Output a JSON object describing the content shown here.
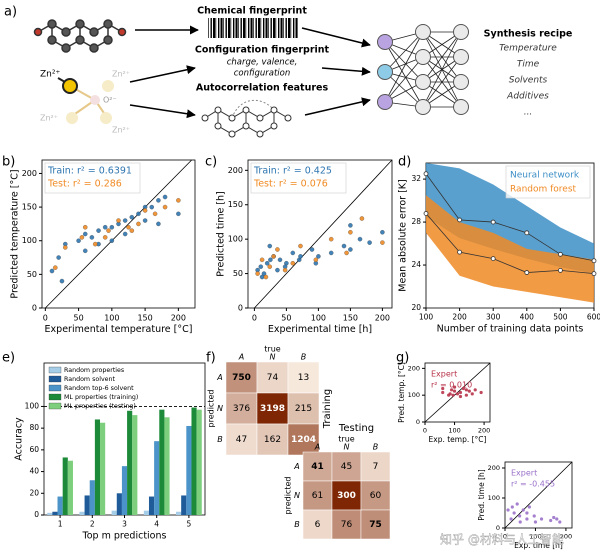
{
  "diagram": {
    "panel": "a)",
    "inputs": [
      "Chemical fingerprint",
      "Configuration fingerprint",
      "Autocorrelation features"
    ],
    "config_detail": [
      "charge, valence,",
      "configuration"
    ],
    "ions": [
      "Zn²⁺",
      "Zn²⁺",
      "Zn²⁺",
      "Zn²⁺",
      "O²⁻"
    ],
    "output_title": "Synthesis recipe",
    "outputs": [
      "Temperature",
      "Time",
      "Solvents",
      "Additives",
      "..."
    ],
    "watermark": "知乎 @材料与人工智能"
  },
  "chart_data": [
    {
      "type": "scatter",
      "panel": "b)",
      "x_label": "Experimental temperature [°C]",
      "y_label": "Predicted temperature [°C]",
      "xlim": [
        -5,
        225
      ],
      "ylim": [
        0,
        220
      ],
      "xticks": [
        0,
        50,
        100,
        150,
        200
      ],
      "yticks": [
        0,
        50,
        100,
        150,
        200
      ],
      "diagonal": true,
      "series": [
        {
          "name": "Train: r² = 0.6391",
          "color": "#2e75b0",
          "x": [
            10,
            20,
            25,
            30,
            50,
            60,
            70,
            80,
            90,
            100,
            110,
            120,
            130,
            140,
            150,
            160,
            170,
            180,
            200,
            100,
            120,
            150,
            80,
            60,
            170
          ],
          "y": [
            55,
            75,
            40,
            95,
            100,
            110,
            105,
            115,
            120,
            120,
            125,
            130,
            135,
            140,
            150,
            150,
            160,
            165,
            140,
            100,
            110,
            130,
            95,
            85,
            125
          ]
        },
        {
          "name": "Test: r² = 0.286",
          "color": "#f08a24",
          "x": [
            15,
            30,
            55,
            75,
            95,
            110,
            125,
            140,
            150,
            165,
            180,
            200,
            90,
            130,
            60
          ],
          "y": [
            60,
            90,
            105,
            95,
            115,
            130,
            120,
            125,
            145,
            140,
            150,
            160,
            105,
            115,
            120
          ]
        }
      ]
    },
    {
      "type": "scatter",
      "panel": "c)",
      "x_label": "Experimental time [h]",
      "y_label": "Predicted time [h]",
      "xlim": [
        -10,
        215
      ],
      "ylim": [
        0,
        215
      ],
      "xticks": [
        0,
        50,
        100,
        150,
        200
      ],
      "yticks": [
        0,
        50,
        100,
        150,
        200
      ],
      "diagonal": true,
      "series": [
        {
          "name": "Train: r² = 0.425",
          "color": "#2e75b0",
          "x": [
            5,
            10,
            15,
            20,
            25,
            30,
            40,
            50,
            60,
            70,
            72,
            90,
            100,
            120,
            140,
            150,
            165,
            180,
            200,
            48,
            24,
            12,
            36,
            96,
            150
          ],
          "y": [
            55,
            60,
            50,
            65,
            70,
            75,
            70,
            65,
            80,
            70,
            75,
            85,
            75,
            80,
            90,
            120,
            100,
            95,
            110,
            60,
            90,
            45,
            55,
            65,
            85
          ]
        },
        {
          "name": "Test: r² = 0.076",
          "color": "#f08a24",
          "x": [
            5,
            12,
            24,
            36,
            48,
            72,
            96,
            120,
            144,
            168,
            200,
            60,
            30,
            150,
            18
          ],
          "y": [
            50,
            70,
            60,
            85,
            55,
            90,
            70,
            100,
            80,
            130,
            95,
            65,
            75,
            110,
            45
          ]
        }
      ]
    },
    {
      "type": "line",
      "panel": "d)",
      "x_label": "Number of training data points",
      "y_label": "Mean absolute error [K]",
      "x": [
        100,
        200,
        300,
        400,
        500,
        600
      ],
      "xlim": [
        100,
        600
      ],
      "ylim": [
        20,
        33.5
      ],
      "xticks": [
        100,
        200,
        300,
        400,
        500,
        600
      ],
      "yticks": [
        20,
        24,
        28,
        32
      ],
      "legend": "upper right",
      "series": [
        {
          "name": "Neural network",
          "color": "#3d8fc6",
          "values": [
            32.5,
            28.2,
            28.0,
            27.0,
            25.0,
            24.4
          ],
          "lower": [
            28.5,
            26.5,
            25.5,
            24.6,
            23.8,
            23.2
          ],
          "upper": [
            33.5,
            33.0,
            31.5,
            29.5,
            27.5,
            26.0
          ]
        },
        {
          "name": "Random forest",
          "color": "#f08a24",
          "values": [
            28.8,
            25.2,
            24.6,
            23.3,
            23.5,
            23.2
          ],
          "lower": [
            27.0,
            23.0,
            22.0,
            21.5,
            21.0,
            20.5
          ],
          "upper": [
            30.5,
            28.0,
            27.0,
            25.5,
            25.0,
            24.5
          ]
        }
      ]
    },
    {
      "type": "bar",
      "panel": "e)",
      "x_label": "Top m predictions",
      "y_label": "Accuracy",
      "categories": [
        "1",
        "2",
        "3",
        "4",
        "5"
      ],
      "ylim": [
        0,
        140
      ],
      "yticks": [
        0,
        20,
        40,
        60,
        80,
        100
      ],
      "hline": 100,
      "series": [
        {
          "name": "Random properties",
          "color": "#a6cde8",
          "values": [
            2,
            3,
            4,
            4,
            3
          ]
        },
        {
          "name": "Random solvent",
          "color": "#1f5b99",
          "values": [
            3,
            18,
            20,
            17,
            18
          ]
        },
        {
          "name": "Random top-6 solvent",
          "color": "#4b93c8",
          "values": [
            17,
            32,
            45,
            68,
            82
          ]
        },
        {
          "name": "ML properties (training)",
          "color": "#1d8a3a",
          "values": [
            53,
            88,
            96,
            97,
            99
          ]
        },
        {
          "name": "ML properties (testing)",
          "color": "#7dcf7d",
          "values": [
            50,
            85,
            92,
            90,
            97
          ]
        }
      ]
    },
    {
      "type": "heatmap",
      "panel": "f)",
      "x_label": "true",
      "y_label": "predicted",
      "categories": [
        "A",
        "N",
        "B"
      ],
      "matrices": [
        {
          "title": "Training",
          "values": [
            [
              750,
              74,
              13
            ],
            [
              376,
              3198,
              215
            ],
            [
              47,
              162,
              1204
            ]
          ]
        },
        {
          "title": "Testing",
          "values": [
            [
              41,
              45,
              7
            ],
            [
              61,
              300,
              60
            ],
            [
              6,
              76,
              75
            ]
          ]
        }
      ]
    },
    {
      "type": "scatter",
      "panel": "g)",
      "x_label": "Exp. temp. [°C]",
      "y_label": "Pred. temp. [°C]",
      "annotation": "r² = 0.010",
      "xlim": [
        0,
        220
      ],
      "ylim": [
        0,
        220
      ],
      "xticks": [
        0,
        100,
        200
      ],
      "yticks": [
        0,
        100,
        200
      ],
      "diagonal": true,
      "series": [
        {
          "name": "Expert",
          "color": "#b8344a",
          "x": [
            60,
            80,
            90,
            100,
            110,
            120,
            130,
            140,
            150,
            170,
            190,
            100,
            120,
            85,
            95,
            140,
            60,
            160
          ],
          "y": [
            110,
            100,
            120,
            115,
            105,
            110,
            125,
            100,
            115,
            120,
            110,
            130,
            95,
            105,
            100,
            120,
            125,
            105
          ]
        }
      ]
    },
    {
      "type": "scatter",
      "x_label": "Exp. time [h]",
      "y_label": "Pred. time [h]",
      "annotation": "r² = -0.455",
      "xlim": [
        0,
        220
      ],
      "ylim": [
        0,
        220
      ],
      "xticks": [
        0,
        100,
        200
      ],
      "yticks": [
        0,
        100,
        200
      ],
      "diagonal": true,
      "series": [
        {
          "name": "Expert",
          "color": "#9b72c9",
          "x": [
            10,
            20,
            24,
            30,
            40,
            48,
            50,
            60,
            72,
            72,
            80,
            96,
            100,
            120,
            150,
            160,
            170,
            180
          ],
          "y": [
            60,
            30,
            70,
            50,
            80,
            40,
            20,
            60,
            50,
            30,
            70,
            40,
            20,
            30,
            25,
            35,
            30,
            20
          ]
        }
      ]
    }
  ]
}
